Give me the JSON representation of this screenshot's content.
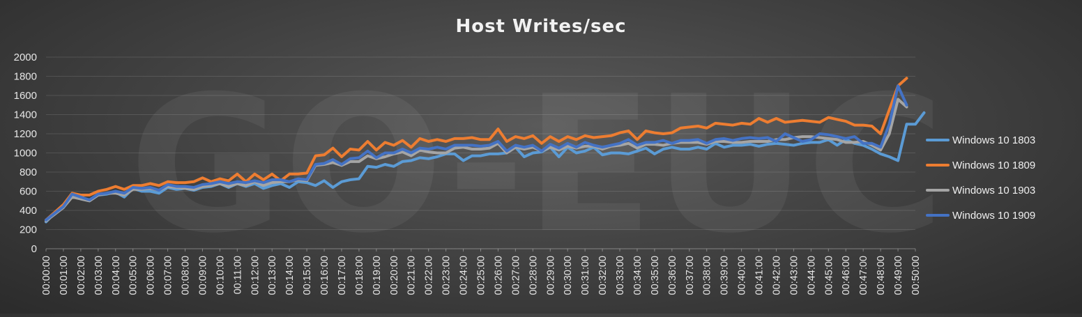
{
  "chart_data": {
    "type": "line",
    "title": "Host Writes/sec",
    "watermark": "GO-EUC",
    "xlabel": "",
    "ylabel": "",
    "ylim": [
      0,
      2000
    ],
    "yticks": [
      "0",
      "200",
      "400",
      "600",
      "800",
      "1000",
      "1200",
      "1400",
      "1600",
      "1800",
      "2000"
    ],
    "grid": true,
    "legend_position": "right",
    "x_labels": [
      "00:00:00",
      "00:01:00",
      "00:02:00",
      "00:03:00",
      "00:04:00",
      "00:05:00",
      "00:06:00",
      "00:07:00",
      "00:08:00",
      "00:09:00",
      "00:10:00",
      "00:11:00",
      "00:12:00",
      "00:13:00",
      "00:14:00",
      "00:15:00",
      "00:16:00",
      "00:17:00",
      "00:18:00",
      "00:19:00",
      "00:20:00",
      "00:21:00",
      "00:22:00",
      "00:23:00",
      "00:24:00",
      "00:25:00",
      "00:26:00",
      "00:27:00",
      "00:28:00",
      "00:29:00",
      "00:30:00",
      "00:31:00",
      "00:32:00",
      "00:33:00",
      "00:34:00",
      "00:35:00",
      "00:36:00",
      "00:37:00",
      "00:38:00",
      "00:39:00",
      "00:40:00",
      "00:41:00",
      "00:42:00",
      "00:43:00",
      "00:44:00",
      "00:45:00",
      "00:46:00",
      "00:47:00",
      "00:48:00",
      "00:49:00",
      "00:50:00"
    ],
    "points_per_label": 2,
    "series": [
      {
        "name": "Windows 10 1803",
        "color": "#5b9bd5",
        "values": [
          280,
          370,
          430,
          560,
          520,
          500,
          560,
          570,
          590,
          540,
          630,
          600,
          600,
          580,
          640,
          620,
          630,
          610,
          640,
          650,
          680,
          640,
          680,
          650,
          680,
          630,
          660,
          680,
          640,
          700,
          690,
          660,
          710,
          640,
          700,
          720,
          730,
          860,
          850,
          880,
          860,
          910,
          920,
          950,
          940,
          960,
          990,
          990,
          920,
          970,
          970,
          990,
          990,
          1000,
          1060,
          960,
          1000,
          1010,
          1060,
          960,
          1060,
          1000,
          1020,
          1060,
          980,
          1000,
          1000,
          990,
          1020,
          1050,
          990,
          1040,
          1060,
          1040,
          1040,
          1060,
          1040,
          1100,
          1060,
          1080,
          1080,
          1090,
          1070,
          1090,
          1100,
          1090,
          1080,
          1100,
          1110,
          1110,
          1140,
          1080,
          1140,
          1100,
          1080,
          1040,
          990,
          960,
          920,
          1300,
          1300,
          1420
        ]
      },
      {
        "name": "Windows 10 1809",
        "color": "#ed7d31",
        "values": [
          300,
          380,
          460,
          580,
          560,
          560,
          600,
          620,
          650,
          620,
          660,
          660,
          680,
          660,
          700,
          690,
          690,
          700,
          740,
          700,
          730,
          710,
          780,
          700,
          780,
          720,
          780,
          710,
          780,
          780,
          790,
          970,
          980,
          1050,
          960,
          1040,
          1030,
          1120,
          1030,
          1110,
          1080,
          1130,
          1060,
          1150,
          1120,
          1140,
          1120,
          1150,
          1150,
          1160,
          1140,
          1140,
          1250,
          1120,
          1170,
          1150,
          1180,
          1100,
          1170,
          1120,
          1170,
          1140,
          1180,
          1160,
          1170,
          1180,
          1210,
          1230,
          1140,
          1230,
          1210,
          1200,
          1210,
          1260,
          1270,
          1280,
          1260,
          1310,
          1300,
          1290,
          1310,
          1300,
          1360,
          1320,
          1360,
          1320,
          1330,
          1340,
          1330,
          1320,
          1370,
          1350,
          1330,
          1290,
          1290,
          1280,
          1200,
          1450,
          1700,
          1780
        ]
      },
      {
        "name": "Windows 10 1903",
        "color": "#a5a5a5",
        "values": [
          290,
          360,
          430,
          540,
          520,
          500,
          560,
          580,
          580,
          560,
          620,
          620,
          630,
          610,
          650,
          640,
          630,
          620,
          650,
          660,
          680,
          650,
          680,
          660,
          700,
          660,
          690,
          700,
          700,
          720,
          710,
          870,
          880,
          900,
          870,
          910,
          910,
          970,
          940,
          960,
          990,
          1010,
          970,
          1030,
          1010,
          1000,
          1000,
          1050,
          1060,
          1040,
          1040,
          1050,
          1100,
          1000,
          1060,
          1040,
          1060,
          1020,
          1060,
          1030,
          1070,
          1050,
          1070,
          1070,
          1040,
          1070,
          1080,
          1100,
          1050,
          1090,
          1090,
          1080,
          1100,
          1110,
          1110,
          1110,
          1090,
          1120,
          1120,
          1110,
          1110,
          1120,
          1120,
          1120,
          1140,
          1140,
          1160,
          1170,
          1170,
          1160,
          1150,
          1140,
          1110,
          1110,
          1120,
          1080,
          1030,
          1200,
          1560,
          1480
        ]
      },
      {
        "name": "Windows 10 1909",
        "color": "#4472c4",
        "values": [
          300,
          370,
          440,
          570,
          540,
          510,
          570,
          580,
          600,
          580,
          640,
          630,
          640,
          610,
          670,
          650,
          650,
          640,
          670,
          680,
          700,
          680,
          700,
          690,
          710,
          690,
          720,
          720,
          700,
          730,
          720,
          880,
          890,
          930,
          880,
          940,
          950,
          1020,
          950,
          1000,
          1000,
          1040,
          1000,
          1050,
          1040,
          1060,
          1040,
          1080,
          1080,
          1080,
          1070,
          1080,
          1120,
          1020,
          1080,
          1060,
          1080,
          1020,
          1090,
          1050,
          1100,
          1060,
          1110,
          1080,
          1060,
          1080,
          1100,
          1140,
          1080,
          1110,
          1110,
          1130,
          1100,
          1130,
          1130,
          1140,
          1100,
          1140,
          1150,
          1130,
          1150,
          1160,
          1150,
          1160,
          1120,
          1200,
          1160,
          1120,
          1140,
          1200,
          1190,
          1170,
          1150,
          1170,
          1100,
          1100,
          1060,
          1300,
          1700,
          1500
        ]
      }
    ]
  }
}
